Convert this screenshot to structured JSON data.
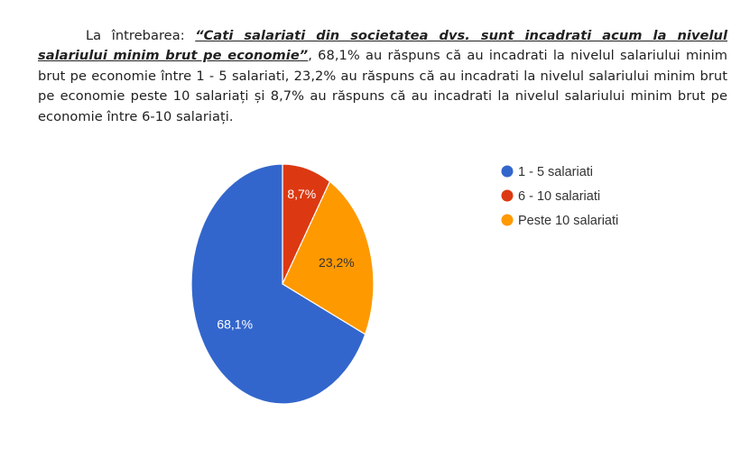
{
  "paragraph": {
    "intro": "La întrebarea: ",
    "question": "“Cati salariati din societatea dvs. sunt incadrati acum la nivelul salariului minim brut pe economie”",
    "body": ", 68,1% au răspuns că au incadrati la nivelul salariului minim brut pe economie între 1 - 5 salariati, 23,2% au răspuns că au incadrati la nivelul salariului minim brut pe economie peste 10 salariați și 8,7% au răspuns că au incadrati la nivelul salariului minim brut pe economie între 6-10 salariați."
  },
  "chart_data": {
    "type": "pie",
    "categories": [
      "1 - 5 salariati",
      "6 - 10 salariati",
      "Peste 10 salariati"
    ],
    "values": [
      68.1,
      8.7,
      23.2
    ],
    "labels": [
      "68,1%",
      "8,7%",
      "23,2%"
    ],
    "colors": [
      "#3366cc",
      "#dc3912",
      "#ff9900"
    ],
    "label_colors": [
      "#ffffff",
      "#ffffff",
      "#333333"
    ],
    "legend_position": "right",
    "slice_order": [
      1,
      2,
      0
    ]
  }
}
